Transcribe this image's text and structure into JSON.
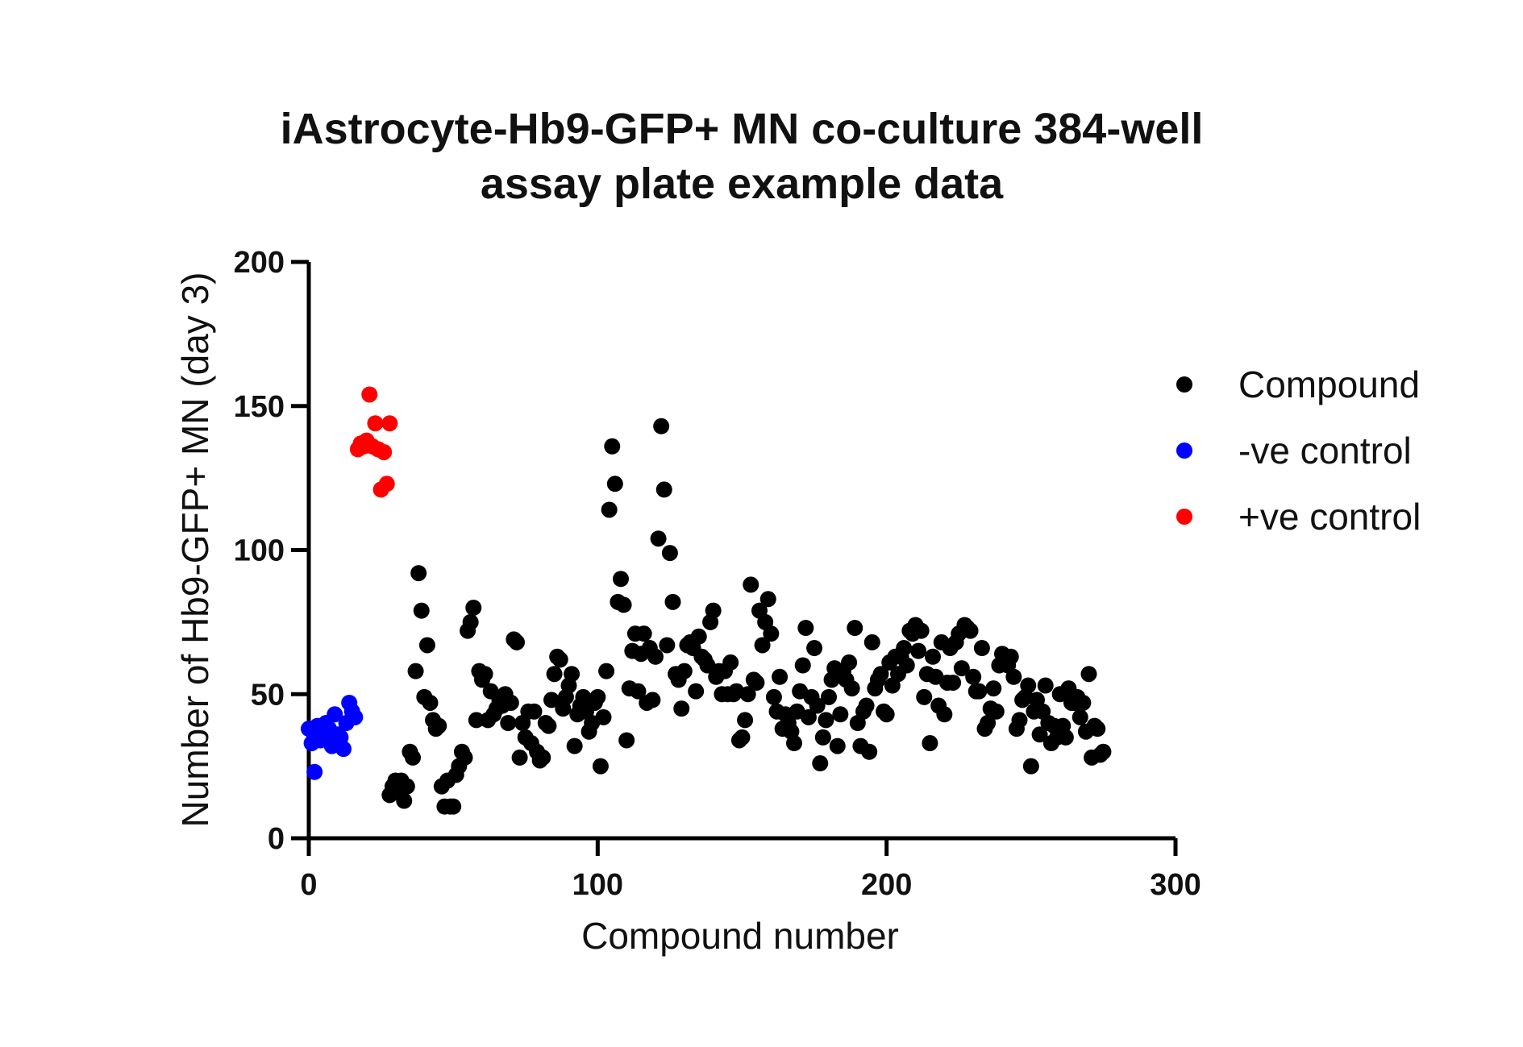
{
  "chart_data": {
    "type": "scatter",
    "title_lines": [
      "iAstrocyte-Hb9-GFP+ MN co-culture 384-well",
      "assay plate example data"
    ],
    "xlabel": "Compound number",
    "ylabel": "Number of Hb9-GFP+ MN (day 3)",
    "xlim": [
      0,
      300
    ],
    "ylim": [
      0,
      200
    ],
    "xticks": [
      0,
      100,
      200,
      300
    ],
    "xtick_labels": [
      "0",
      "100",
      "200",
      "300"
    ],
    "yticks": [
      0,
      50,
      100,
      150,
      200
    ],
    "ytick_labels": [
      "0",
      "50",
      "100",
      "150",
      "200"
    ],
    "grid": false,
    "legend_position": "right",
    "series": [
      {
        "name": "Compound",
        "color": "#000000",
        "points": [
          [
            28,
            15
          ],
          [
            29,
            18
          ],
          [
            30,
            20
          ],
          [
            31,
            16
          ],
          [
            32,
            20
          ],
          [
            33,
            13
          ],
          [
            34,
            18
          ],
          [
            35,
            30
          ],
          [
            36,
            28
          ],
          [
            37,
            58
          ],
          [
            38,
            92
          ],
          [
            39,
            79
          ],
          [
            40,
            49
          ],
          [
            41,
            67
          ],
          [
            42,
            47
          ],
          [
            43,
            41
          ],
          [
            44,
            38
          ],
          [
            45,
            39
          ],
          [
            46,
            18
          ],
          [
            47,
            11
          ],
          [
            48,
            20
          ],
          [
            49,
            11
          ],
          [
            50,
            11
          ],
          [
            51,
            22
          ],
          [
            52,
            25
          ],
          [
            53,
            30
          ],
          [
            54,
            28
          ],
          [
            55,
            72
          ],
          [
            56,
            75
          ],
          [
            57,
            80
          ],
          [
            58,
            41
          ],
          [
            59,
            58
          ],
          [
            60,
            55
          ],
          [
            61,
            57
          ],
          [
            62,
            41
          ],
          [
            63,
            51
          ],
          [
            64,
            43
          ],
          [
            65,
            45
          ],
          [
            66,
            48
          ],
          [
            67,
            46
          ],
          [
            68,
            50
          ],
          [
            69,
            40
          ],
          [
            70,
            47
          ],
          [
            71,
            69
          ],
          [
            72,
            68
          ],
          [
            73,
            28
          ],
          [
            74,
            40
          ],
          [
            75,
            35
          ],
          [
            76,
            44
          ],
          [
            77,
            33
          ],
          [
            78,
            44
          ],
          [
            79,
            30
          ],
          [
            80,
            27
          ],
          [
            81,
            28
          ],
          [
            82,
            40
          ],
          [
            83,
            39
          ],
          [
            84,
            48
          ],
          [
            85,
            57
          ],
          [
            86,
            63
          ],
          [
            87,
            62
          ],
          [
            88,
            45
          ],
          [
            89,
            49
          ],
          [
            90,
            53
          ],
          [
            91,
            57
          ],
          [
            92,
            32
          ],
          [
            93,
            43
          ],
          [
            94,
            46
          ],
          [
            95,
            49
          ],
          [
            96,
            44
          ],
          [
            97,
            37
          ],
          [
            98,
            40
          ],
          [
            99,
            47
          ],
          [
            100,
            49
          ],
          [
            101,
            25
          ],
          [
            102,
            42
          ],
          [
            103,
            58
          ],
          [
            104,
            114
          ],
          [
            105,
            136
          ],
          [
            106,
            123
          ],
          [
            107,
            82
          ],
          [
            108,
            90
          ],
          [
            109,
            81
          ],
          [
            110,
            34
          ],
          [
            111,
            52
          ],
          [
            112,
            65
          ],
          [
            113,
            71
          ],
          [
            114,
            51
          ],
          [
            115,
            64
          ],
          [
            116,
            71
          ],
          [
            117,
            47
          ],
          [
            118,
            66
          ],
          [
            119,
            48
          ],
          [
            120,
            63
          ],
          [
            121,
            104
          ],
          [
            122,
            143
          ],
          [
            123,
            121
          ],
          [
            124,
            67
          ],
          [
            125,
            99
          ],
          [
            126,
            82
          ],
          [
            127,
            57
          ],
          [
            128,
            55
          ],
          [
            129,
            45
          ],
          [
            130,
            58
          ],
          [
            131,
            67
          ],
          [
            132,
            68
          ],
          [
            133,
            66
          ],
          [
            134,
            51
          ],
          [
            135,
            70
          ],
          [
            136,
            63
          ],
          [
            137,
            62
          ],
          [
            138,
            60
          ],
          [
            139,
            75
          ],
          [
            140,
            79
          ],
          [
            141,
            56
          ],
          [
            142,
            58
          ],
          [
            143,
            50
          ],
          [
            144,
            58
          ],
          [
            145,
            50
          ],
          [
            146,
            61
          ],
          [
            147,
            50
          ],
          [
            148,
            51
          ],
          [
            149,
            34
          ],
          [
            150,
            35
          ],
          [
            151,
            41
          ],
          [
            152,
            50
          ],
          [
            153,
            88
          ],
          [
            154,
            55
          ],
          [
            155,
            54
          ],
          [
            156,
            79
          ],
          [
            157,
            67
          ],
          [
            158,
            75
          ],
          [
            159,
            83
          ],
          [
            160,
            71
          ],
          [
            161,
            49
          ],
          [
            162,
            44
          ],
          [
            163,
            56
          ],
          [
            164,
            38
          ],
          [
            165,
            43
          ],
          [
            166,
            40
          ],
          [
            167,
            37
          ],
          [
            168,
            33
          ],
          [
            169,
            44
          ],
          [
            170,
            51
          ],
          [
            171,
            60
          ],
          [
            172,
            73
          ],
          [
            173,
            42
          ],
          [
            174,
            49
          ],
          [
            175,
            66
          ],
          [
            176,
            46
          ],
          [
            177,
            26
          ],
          [
            178,
            35
          ],
          [
            179,
            41
          ],
          [
            180,
            49
          ],
          [
            181,
            55
          ],
          [
            182,
            59
          ],
          [
            183,
            32
          ],
          [
            184,
            43
          ],
          [
            185,
            58
          ],
          [
            186,
            55
          ],
          [
            187,
            61
          ],
          [
            188,
            52
          ],
          [
            189,
            73
          ],
          [
            190,
            40
          ],
          [
            191,
            32
          ],
          [
            192,
            44
          ],
          [
            193,
            46
          ],
          [
            194,
            30
          ],
          [
            195,
            68
          ],
          [
            196,
            52
          ],
          [
            197,
            55
          ],
          [
            198,
            57
          ],
          [
            199,
            44
          ],
          [
            200,
            43
          ],
          [
            201,
            61
          ],
          [
            202,
            53
          ],
          [
            203,
            63
          ],
          [
            204,
            57
          ],
          [
            205,
            63
          ],
          [
            206,
            66
          ],
          [
            207,
            60
          ],
          [
            208,
            72
          ],
          [
            209,
            71
          ],
          [
            210,
            74
          ],
          [
            211,
            65
          ],
          [
            212,
            72
          ],
          [
            213,
            49
          ],
          [
            214,
            57
          ],
          [
            215,
            33
          ],
          [
            216,
            63
          ],
          [
            217,
            56
          ],
          [
            218,
            46
          ],
          [
            219,
            68
          ],
          [
            220,
            43
          ],
          [
            221,
            54
          ],
          [
            222,
            66
          ],
          [
            223,
            54
          ],
          [
            224,
            68
          ],
          [
            225,
            71
          ],
          [
            226,
            59
          ],
          [
            227,
            74
          ],
          [
            228,
            73
          ],
          [
            229,
            72
          ],
          [
            230,
            56
          ],
          [
            231,
            51
          ],
          [
            232,
            51
          ],
          [
            233,
            66
          ],
          [
            234,
            38
          ],
          [
            235,
            40
          ],
          [
            236,
            45
          ],
          [
            237,
            52
          ],
          [
            238,
            44
          ],
          [
            239,
            60
          ],
          [
            240,
            64
          ],
          [
            241,
            63
          ],
          [
            242,
            60
          ],
          [
            243,
            63
          ],
          [
            244,
            56
          ],
          [
            245,
            38
          ],
          [
            246,
            41
          ],
          [
            247,
            48
          ],
          [
            248,
            49
          ],
          [
            249,
            53
          ],
          [
            250,
            25
          ],
          [
            251,
            44
          ],
          [
            252,
            48
          ],
          [
            253,
            36
          ],
          [
            254,
            44
          ],
          [
            255,
            53
          ],
          [
            256,
            40
          ],
          [
            257,
            33
          ],
          [
            258,
            39
          ],
          [
            259,
            35
          ],
          [
            260,
            50
          ],
          [
            261,
            39
          ],
          [
            262,
            35
          ],
          [
            263,
            52
          ],
          [
            264,
            47
          ],
          [
            265,
            47
          ],
          [
            266,
            49
          ],
          [
            267,
            42
          ],
          [
            268,
            47
          ],
          [
            269,
            37
          ],
          [
            270,
            57
          ],
          [
            271,
            28
          ],
          [
            272,
            39
          ],
          [
            273,
            38
          ],
          [
            274,
            29
          ],
          [
            275,
            30
          ]
        ]
      },
      {
        "name": "-ve control",
        "color": "#0000ff",
        "points": [
          [
            0,
            38
          ],
          [
            1,
            33
          ],
          [
            2,
            35
          ],
          [
            2,
            23
          ],
          [
            3,
            39
          ],
          [
            4,
            34
          ],
          [
            5,
            36
          ],
          [
            6,
            40
          ],
          [
            7,
            38
          ],
          [
            8,
            32
          ],
          [
            9,
            43
          ],
          [
            10,
            36
          ],
          [
            11,
            35
          ],
          [
            12,
            31
          ],
          [
            13,
            40
          ],
          [
            14,
            47
          ],
          [
            15,
            44
          ],
          [
            16,
            42
          ]
        ]
      },
      {
        "name": "+ve control",
        "color": "#ff0000",
        "points": [
          [
            17,
            135
          ],
          [
            18,
            137
          ],
          [
            19,
            136
          ],
          [
            20,
            138
          ],
          [
            21,
            154
          ],
          [
            22,
            136
          ],
          [
            23,
            144
          ],
          [
            24,
            135
          ],
          [
            25,
            121
          ],
          [
            26,
            134
          ],
          [
            27,
            123
          ],
          [
            28,
            144
          ]
        ]
      }
    ]
  }
}
